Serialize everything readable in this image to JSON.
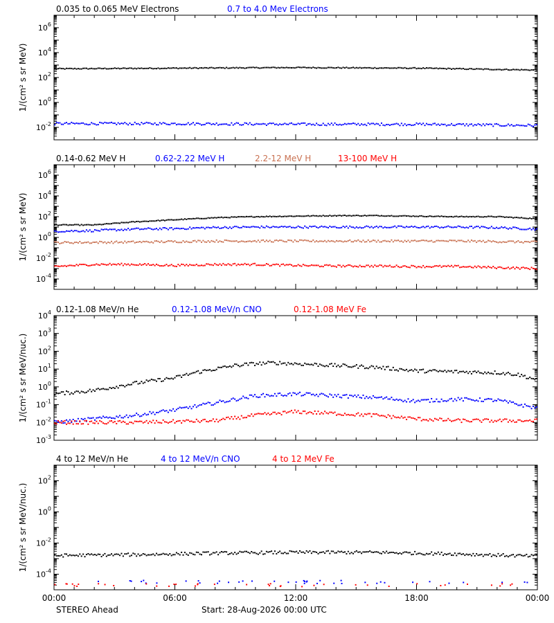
{
  "footer": {
    "x_ticks": [
      "00:00",
      "06:00",
      "12:00",
      "18:00",
      "00:00"
    ],
    "observatory": "STEREO Ahead",
    "start_text": "Start: 28-Aug-2026 00:00 UTC"
  },
  "colors": {
    "black": "#000000",
    "blue": "#0000ff",
    "brown": "#c87050",
    "red": "#ff0000"
  },
  "chart_data": [
    {
      "type": "scatter",
      "id": "electrons",
      "ylabel": "1/(cm² s sr MeV)",
      "yscale": "log",
      "ylim_log10": [
        -3,
        7
      ],
      "y_ticks_log10": [
        -2,
        0,
        2,
        4,
        6
      ],
      "x_range_hours": [
        0,
        24
      ],
      "series": [
        {
          "name": "0.035 to 0.065 MeV Electrons",
          "color": "#000000",
          "x_hours": [
            0,
            6,
            12,
            18,
            24
          ],
          "log10_values": [
            2.7,
            2.75,
            2.8,
            2.75,
            2.6
          ]
        },
        {
          "name": "0.7 to 4.0 Mev Electrons",
          "color": "#0000ff",
          "x_hours": [
            0,
            6,
            12,
            18,
            24
          ],
          "log10_values": [
            -1.7,
            -1.7,
            -1.75,
            -1.75,
            -1.85
          ]
        }
      ]
    },
    {
      "type": "scatter",
      "id": "protons",
      "ylabel": "1/(cm² s sr MeV)",
      "yscale": "log",
      "ylim_log10": [
        -5,
        7
      ],
      "y_ticks_log10": [
        -4,
        -2,
        0,
        2,
        4,
        6
      ],
      "x_range_hours": [
        0,
        24
      ],
      "series": [
        {
          "name": "0.14-0.62 MeV H",
          "color": "#000000",
          "x_hours": [
            0,
            2,
            4,
            6,
            8,
            10,
            12,
            14,
            16,
            18,
            20,
            22,
            24
          ],
          "log10_values": [
            1.2,
            1.2,
            1.5,
            1.7,
            1.9,
            2.0,
            2.05,
            2.1,
            2.1,
            2.05,
            2.0,
            2.0,
            1.8
          ]
        },
        {
          "name": "0.62-2.22 MeV H",
          "color": "#0000ff",
          "x_hours": [
            0,
            2,
            4,
            6,
            8,
            10,
            12,
            14,
            16,
            18,
            20,
            22,
            24
          ],
          "log10_values": [
            0.6,
            0.65,
            0.8,
            0.85,
            0.95,
            1.0,
            1.0,
            1.0,
            1.0,
            1.0,
            1.0,
            0.95,
            0.8
          ]
        },
        {
          "name": "2.2-12 MeV H",
          "color": "#c87050",
          "x_hours": [
            0,
            4,
            8,
            12,
            16,
            20,
            24
          ],
          "log10_values": [
            -0.5,
            -0.45,
            -0.35,
            -0.35,
            -0.35,
            -0.35,
            -0.45
          ]
        },
        {
          "name": "13-100 MeV H",
          "color": "#ff0000",
          "x_hours": [
            0,
            2,
            4,
            6,
            8,
            10,
            12,
            14,
            16,
            18,
            20,
            22,
            24
          ],
          "log10_values": [
            -2.8,
            -2.6,
            -2.6,
            -2.7,
            -2.6,
            -2.6,
            -2.7,
            -2.75,
            -2.75,
            -2.8,
            -2.8,
            -2.9,
            -3.0
          ]
        }
      ]
    },
    {
      "type": "scatter",
      "id": "low-energy-ions",
      "ylabel": "1/(cm² s sr MeV/nuc.)",
      "yscale": "log",
      "ylim_log10": [
        -3,
        4
      ],
      "y_ticks_log10": [
        -3,
        -2,
        -1,
        0,
        1,
        2,
        3,
        4
      ],
      "x_range_hours": [
        0,
        24
      ],
      "series": [
        {
          "name": "0.12-1.08 MeV/n He",
          "color": "#000000",
          "x_hours": [
            0,
            2,
            4,
            6,
            7,
            8,
            9,
            10,
            11,
            12,
            14,
            16,
            18,
            20,
            22,
            23,
            24
          ],
          "log10_values": [
            -0.4,
            -0.2,
            0.2,
            0.5,
            0.8,
            1.0,
            1.2,
            1.3,
            1.35,
            1.3,
            1.2,
            1.1,
            0.9,
            0.85,
            0.8,
            0.7,
            0.4
          ]
        },
        {
          "name": "0.12-1.08 MeV/n CNO",
          "color": "#0000ff",
          "x_hours": [
            0,
            2,
            4,
            6,
            8,
            10,
            12,
            14,
            16,
            18,
            20,
            22,
            24
          ],
          "log10_values": [
            -2.0,
            -1.8,
            -1.6,
            -1.3,
            -0.9,
            -0.5,
            -0.4,
            -0.5,
            -0.6,
            -0.8,
            -0.7,
            -0.75,
            -1.2
          ]
        },
        {
          "name": "0.12-1.08 MeV Fe",
          "color": "#ff0000",
          "x_hours": [
            0,
            4,
            8,
            10,
            12,
            14,
            16,
            18,
            20,
            24
          ],
          "log10_values": [
            -2.0,
            -2.0,
            -1.9,
            -1.6,
            -1.4,
            -1.5,
            -1.6,
            -1.8,
            -1.9,
            -1.9
          ]
        }
      ]
    },
    {
      "type": "scatter",
      "id": "high-energy-ions",
      "ylabel": "1/(cm² s sr MeV/nuc.)",
      "yscale": "log",
      "ylim_log10": [
        -5,
        3
      ],
      "y_ticks_log10": [
        -4,
        -2,
        0,
        2
      ],
      "x_range_hours": [
        0,
        24
      ],
      "series": [
        {
          "name": "4 to 12 MeV/n He",
          "color": "#000000",
          "x_hours": [
            0,
            4,
            8,
            12,
            16,
            20,
            24
          ],
          "log10_values": [
            -2.8,
            -2.75,
            -2.65,
            -2.6,
            -2.6,
            -2.7,
            -2.85
          ]
        },
        {
          "name": "4 to 12 MeV/n CNO",
          "color": "#0000ff",
          "x_hours": [
            0,
            24
          ],
          "log10_values": [
            -4.5,
            -4.5
          ]
        },
        {
          "name": "4 to 12 MeV Fe",
          "color": "#ff0000",
          "x_hours": [
            0,
            24
          ],
          "log10_values": [
            -4.7,
            -4.7
          ]
        }
      ]
    }
  ]
}
